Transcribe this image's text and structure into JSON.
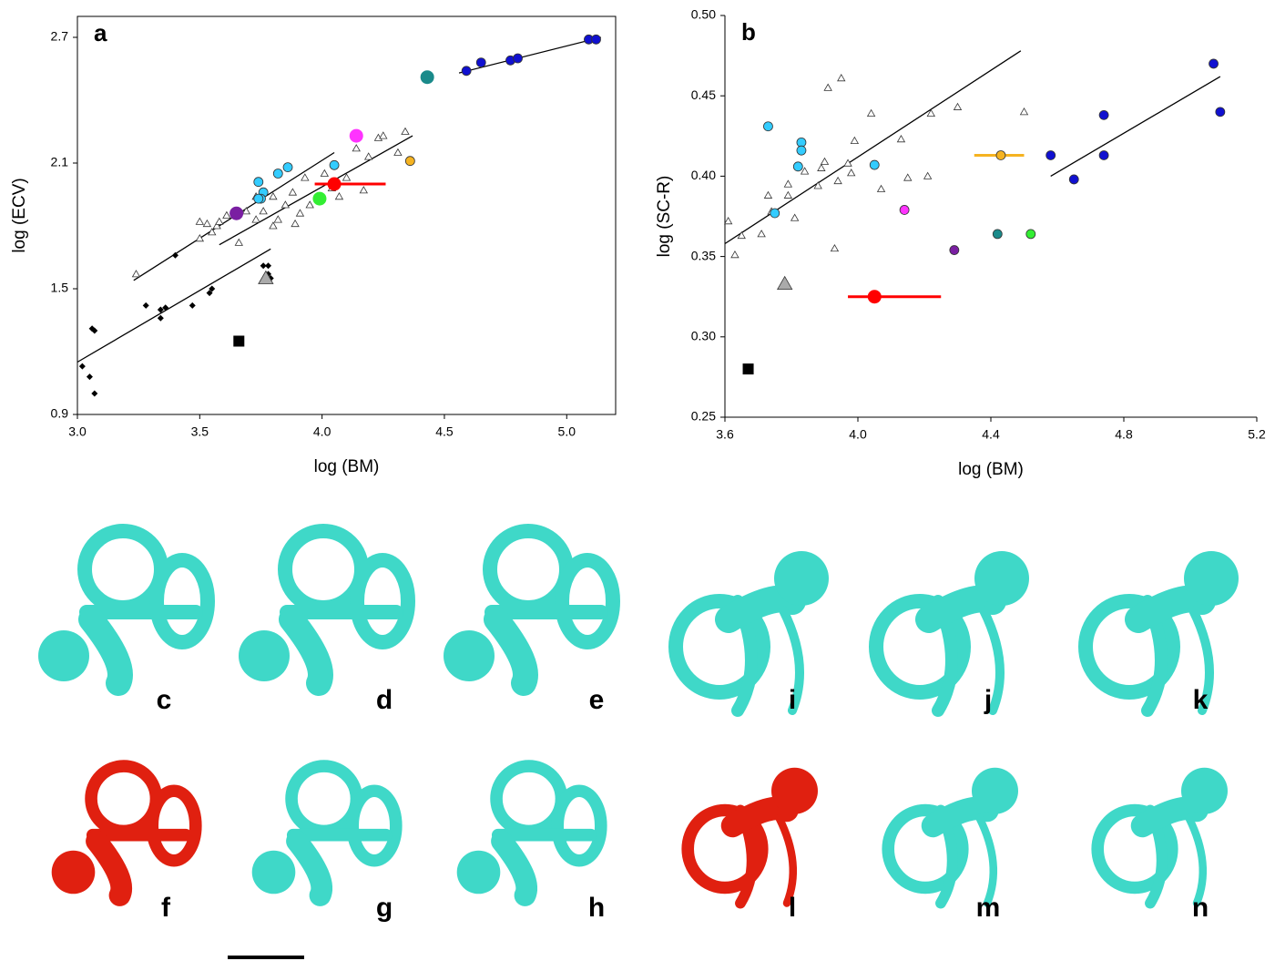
{
  "chart_data": [
    {
      "type": "scatter",
      "panel": "a",
      "xlabel": "log (BM)",
      "ylabel": "log (ECV)",
      "xlim": [
        3.0,
        5.2
      ],
      "ylim": [
        0.9,
        2.8
      ],
      "xticks": [
        {
          "value": 3,
          "label": "3.0"
        },
        3.5,
        {
          "value": 4,
          "label": "4.0"
        },
        4.5,
        {
          "value": 5,
          "label": "5.0"
        }
      ],
      "yticks": [
        0.9,
        1.5,
        2.1,
        2.7
      ],
      "series": [
        {
          "color": "#000000",
          "marker": "line",
          "x": [
            3.23,
            4.05
          ],
          "values": [
            1.54,
            2.15
          ]
        },
        {
          "color": "#000000",
          "marker": "line",
          "x": [
            3.58,
            4.37
          ],
          "values": [
            1.71,
            2.23
          ]
        },
        {
          "color": "#000000",
          "marker": "line",
          "x": [
            3.0,
            3.79
          ],
          "values": [
            1.15,
            1.69
          ]
        },
        {
          "color": "#000000",
          "marker": "line",
          "x": [
            4.56,
            5.14
          ],
          "values": [
            2.53,
            2.7
          ]
        },
        {
          "color": "#ffffff",
          "marker": "triangle",
          "x": [
            3.24,
            3.5,
            3.5,
            3.53,
            3.55,
            3.57,
            3.61,
            3.66,
            3.69,
            3.73,
            3.76,
            3.8,
            3.82,
            3.85,
            3.88,
            3.89,
            3.93,
            3.95,
            3.99,
            4.01,
            4.04,
            4.07,
            4.1,
            4.14,
            4.17,
            4.19,
            4.23,
            4.25,
            4.34,
            4.31,
            3.91,
            3.73,
            3.58,
            3.8
          ],
          "values": [
            1.57,
            1.82,
            1.74,
            1.81,
            1.77,
            1.8,
            1.85,
            1.72,
            1.87,
            1.83,
            1.87,
            1.94,
            1.83,
            1.9,
            1.96,
            1.81,
            2.03,
            1.9,
            1.94,
            2.05,
            1.98,
            1.94,
            2.03,
            2.17,
            1.97,
            2.13,
            2.22,
            2.23,
            2.25,
            2.15,
            1.86,
            1.94,
            1.82,
            1.8
          ]
        },
        {
          "color": "#000000",
          "marker": "diamond",
          "x": [
            3.02,
            3.05,
            3.07,
            3.06,
            3.07,
            3.28,
            3.34,
            3.36,
            3.34,
            3.47,
            3.54,
            3.55,
            3.4,
            3.76,
            3.78,
            3.78,
            3.79
          ],
          "values": [
            1.13,
            1.08,
            1.0,
            1.31,
            1.3,
            1.42,
            1.4,
            1.41,
            1.36,
            1.42,
            1.48,
            1.5,
            1.66,
            1.61,
            1.61,
            1.57,
            1.55
          ]
        },
        {
          "color": "#33ccff",
          "marker": "circle",
          "x": [
            3.74,
            3.76,
            3.75,
            3.74,
            3.82,
            3.86,
            4.05
          ],
          "values": [
            2.01,
            1.96,
            1.93,
            1.93,
            2.05,
            2.08,
            2.09
          ]
        },
        {
          "color": "#1010d0",
          "marker": "circle",
          "x": [
            4.59,
            4.65,
            4.77,
            4.8,
            5.09,
            5.12
          ],
          "values": [
            2.54,
            2.58,
            2.59,
            2.6,
            2.69,
            2.69
          ]
        },
        {
          "color": "#1a8a8a",
          "marker": "large-circle",
          "x": [
            4.43
          ],
          "values": [
            2.51
          ]
        },
        {
          "color": "#ff33ff",
          "marker": "large-circle",
          "x": [
            4.14
          ],
          "values": [
            2.23
          ]
        },
        {
          "color": "#f5b321",
          "marker": "circle",
          "x": [
            4.36
          ],
          "values": [
            2.11
          ]
        },
        {
          "color": "#ff0000",
          "marker": "large-circle",
          "x": [
            4.05
          ],
          "values": [
            2.0
          ],
          "xerr": [
            [
              3.97,
              4.26
            ]
          ]
        },
        {
          "color": "#33ee33",
          "marker": "large-circle",
          "x": [
            3.99
          ],
          "values": [
            1.93
          ]
        },
        {
          "color": "#7a1fa2",
          "marker": "large-circle",
          "x": [
            3.65
          ],
          "values": [
            1.86
          ]
        },
        {
          "color": "#aaaaaa",
          "marker": "large-triangle",
          "x": [
            3.77
          ],
          "values": [
            1.55
          ]
        },
        {
          "color": "#000000",
          "marker": "square",
          "x": [
            3.66
          ],
          "values": [
            1.25
          ]
        }
      ]
    },
    {
      "type": "scatter",
      "panel": "b",
      "xlabel": "log (BM)",
      "ylabel": "log (SC-R)",
      "xlim": [
        3.6,
        5.2
      ],
      "ylim": [
        0.25,
        0.5
      ],
      "xticks": [
        3.6,
        {
          "value": 4,
          "label": "4.0"
        },
        4.4,
        4.8,
        5.2
      ],
      "yticks": [
        0.25,
        {
          "value": 0.3,
          "label": "0.30"
        },
        0.35,
        {
          "value": 0.4,
          "label": "0.40"
        },
        0.45,
        {
          "value": 0.5,
          "label": "0.50"
        }
      ],
      "series": [
        {
          "color": "#000000",
          "marker": "line",
          "x": [
            3.6,
            4.49
          ],
          "values": [
            0.358,
            0.478
          ]
        },
        {
          "color": "#000000",
          "marker": "line",
          "x": [
            4.58,
            5.09
          ],
          "values": [
            0.4,
            0.462
          ]
        },
        {
          "color": "#ffffff",
          "marker": "triangle",
          "x": [
            3.61,
            3.63,
            3.65,
            3.71,
            3.73,
            3.74,
            3.79,
            3.79,
            3.84,
            3.89,
            3.88,
            3.9,
            3.91,
            3.95,
            3.93,
            3.94,
            3.97,
            3.98,
            3.99,
            4.04,
            4.07,
            4.13,
            4.15,
            4.21,
            4.22,
            4.3,
            4.5,
            3.81
          ],
          "values": [
            0.372,
            0.351,
            0.363,
            0.364,
            0.388,
            0.378,
            0.395,
            0.388,
            0.403,
            0.405,
            0.394,
            0.409,
            0.455,
            0.461,
            0.355,
            0.397,
            0.408,
            0.402,
            0.422,
            0.439,
            0.392,
            0.423,
            0.399,
            0.4,
            0.439,
            0.443,
            0.44,
            0.374
          ]
        },
        {
          "color": "#33ccff",
          "marker": "circle",
          "x": [
            3.73,
            3.83,
            3.83,
            3.82,
            4.05,
            3.75
          ],
          "values": [
            0.431,
            0.421,
            0.416,
            0.406,
            0.407,
            0.377
          ]
        },
        {
          "color": "#1010d0",
          "marker": "circle",
          "x": [
            5.07,
            5.09,
            4.74,
            4.74,
            4.58,
            4.65
          ],
          "values": [
            0.47,
            0.44,
            0.438,
            0.413,
            0.413,
            0.398
          ]
        },
        {
          "color": "#f5b321",
          "marker": "circle",
          "x": [
            4.43
          ],
          "values": [
            0.413
          ],
          "xerr": [
            [
              4.35,
              4.5
            ]
          ]
        },
        {
          "color": "#ff0000",
          "marker": "large-circle",
          "x": [
            4.05
          ],
          "values": [
            0.325
          ],
          "xerr": [
            [
              3.97,
              4.25
            ]
          ]
        },
        {
          "color": "#1a8a8a",
          "marker": "circle",
          "x": [
            4.42
          ],
          "values": [
            0.364
          ]
        },
        {
          "color": "#33ee33",
          "marker": "circle",
          "x": [
            4.52
          ],
          "values": [
            0.364
          ]
        },
        {
          "color": "#7a1fa2",
          "marker": "circle",
          "x": [
            4.29
          ],
          "values": [
            0.354
          ]
        },
        {
          "color": "#ff33ff",
          "marker": "circle",
          "x": [
            4.14
          ],
          "values": [
            0.379
          ]
        },
        {
          "color": "#aaaaaa",
          "marker": "large-triangle",
          "x": [
            3.78
          ],
          "values": [
            0.333
          ]
        },
        {
          "color": "#000000",
          "marker": "square",
          "x": [
            3.67
          ],
          "values": [
            0.28
          ]
        }
      ]
    }
  ],
  "panels": [
    "c",
    "d",
    "e",
    "i",
    "j",
    "k",
    "f",
    "g",
    "h",
    "l",
    "m",
    "n"
  ]
}
